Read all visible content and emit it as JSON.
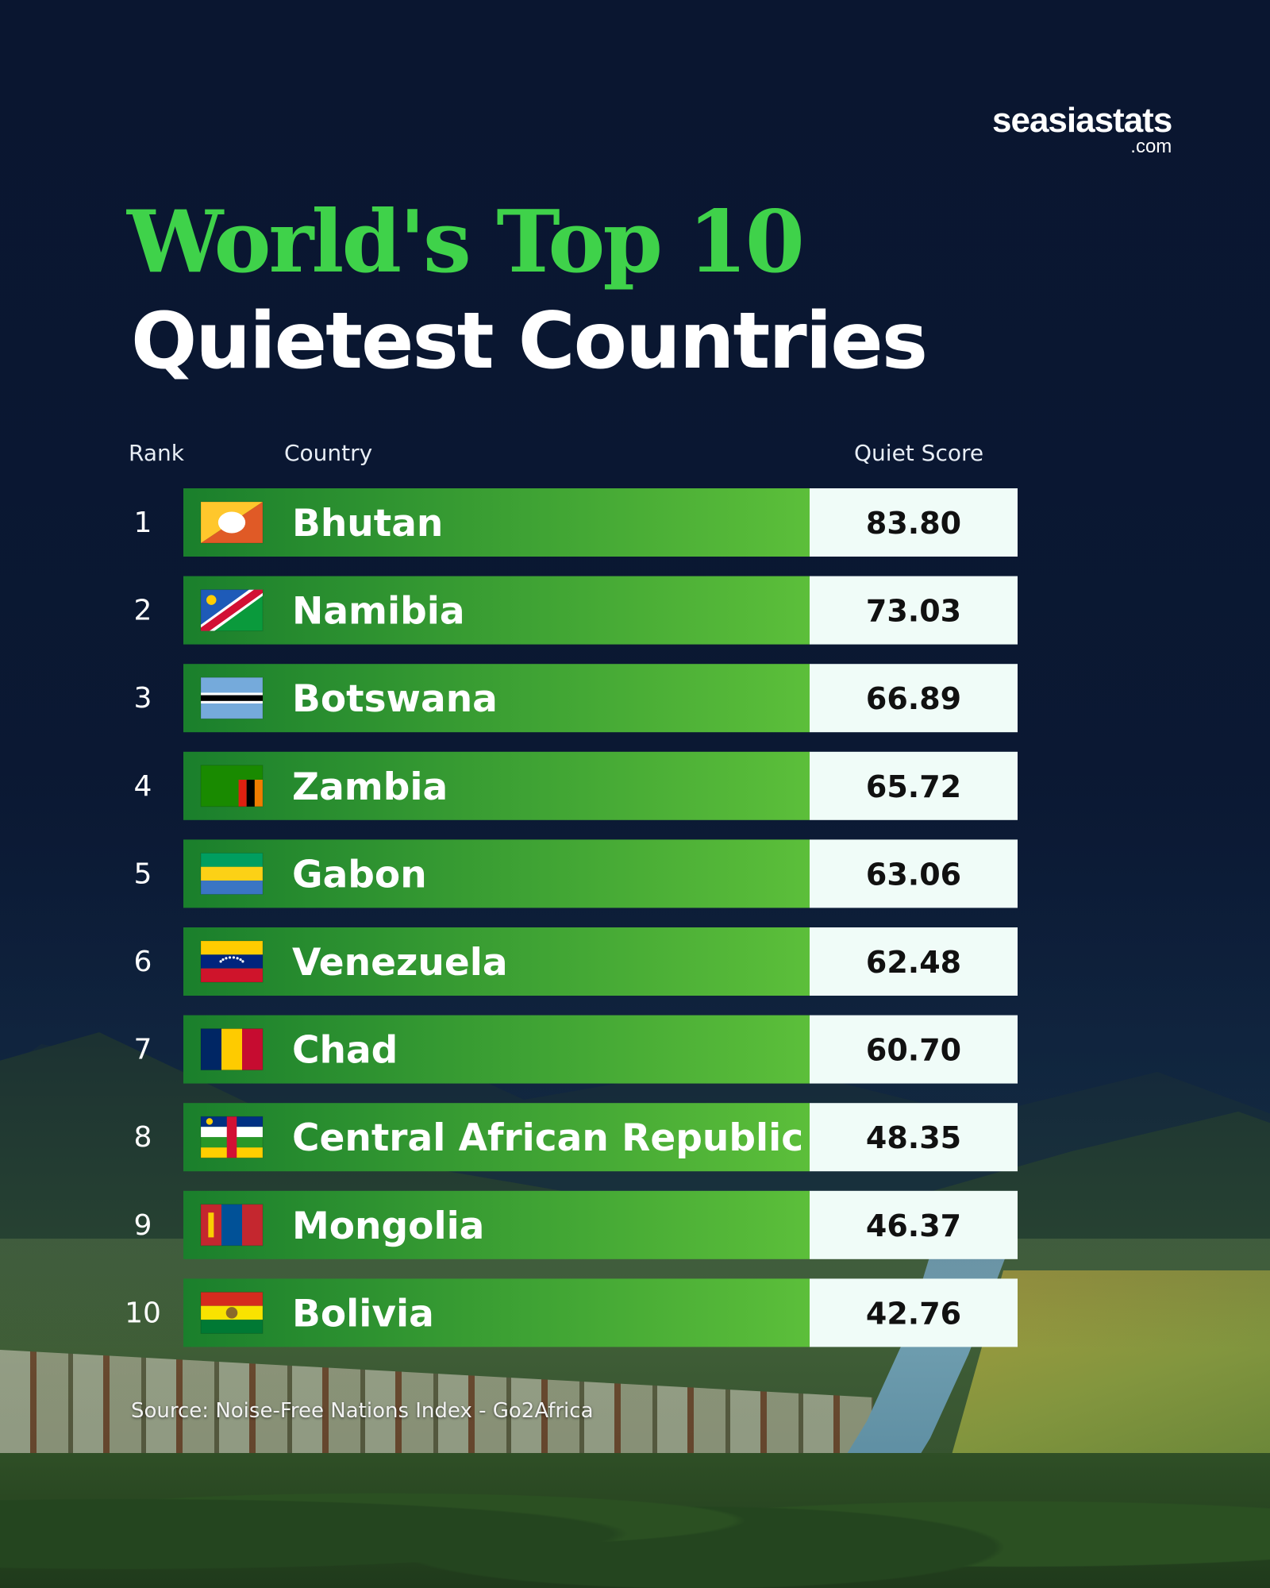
{
  "brand": {
    "name": "seasiastats",
    "suffix": ".com"
  },
  "title": {
    "line1": "World's Top 10",
    "line2": "Quietest Countries"
  },
  "columns": {
    "rank": "Rank",
    "country": "Country",
    "score": "Quiet Score"
  },
  "source": "Source: Noise-Free Nations Index - Go2Africa",
  "colors": {
    "title_green": "#3fd24a",
    "bar_green_dark": "#1e8a2e",
    "bar_green_light": "#5cbf3a",
    "score_bg": "#f0fcf8"
  },
  "chart_data": {
    "type": "table",
    "columns": [
      "Rank",
      "Country",
      "Quiet Score"
    ],
    "rows": [
      {
        "rank": "1",
        "country": "Bhutan",
        "score": "83.80",
        "flag_icon": "bhutan-flag-icon"
      },
      {
        "rank": "2",
        "country": "Namibia",
        "score": "73.03",
        "flag_icon": "namibia-flag-icon"
      },
      {
        "rank": "3",
        "country": "Botswana",
        "score": "66.89",
        "flag_icon": "botswana-flag-icon"
      },
      {
        "rank": "4",
        "country": "Zambia",
        "score": "65.72",
        "flag_icon": "zambia-flag-icon"
      },
      {
        "rank": "5",
        "country": "Gabon",
        "score": "63.06",
        "flag_icon": "gabon-flag-icon"
      },
      {
        "rank": "6",
        "country": "Venezuela",
        "score": "62.48",
        "flag_icon": "venezuela-flag-icon"
      },
      {
        "rank": "7",
        "country": "Chad",
        "score": "60.70",
        "flag_icon": "chad-flag-icon"
      },
      {
        "rank": "8",
        "country": "Central African Republic",
        "score": "48.35",
        "flag_icon": "central-african-republic-flag-icon"
      },
      {
        "rank": "9",
        "country": "Mongolia",
        "score": "46.37",
        "flag_icon": "mongolia-flag-icon"
      },
      {
        "rank": "10",
        "country": "Bolivia",
        "score": "42.76",
        "flag_icon": "bolivia-flag-icon"
      }
    ]
  }
}
